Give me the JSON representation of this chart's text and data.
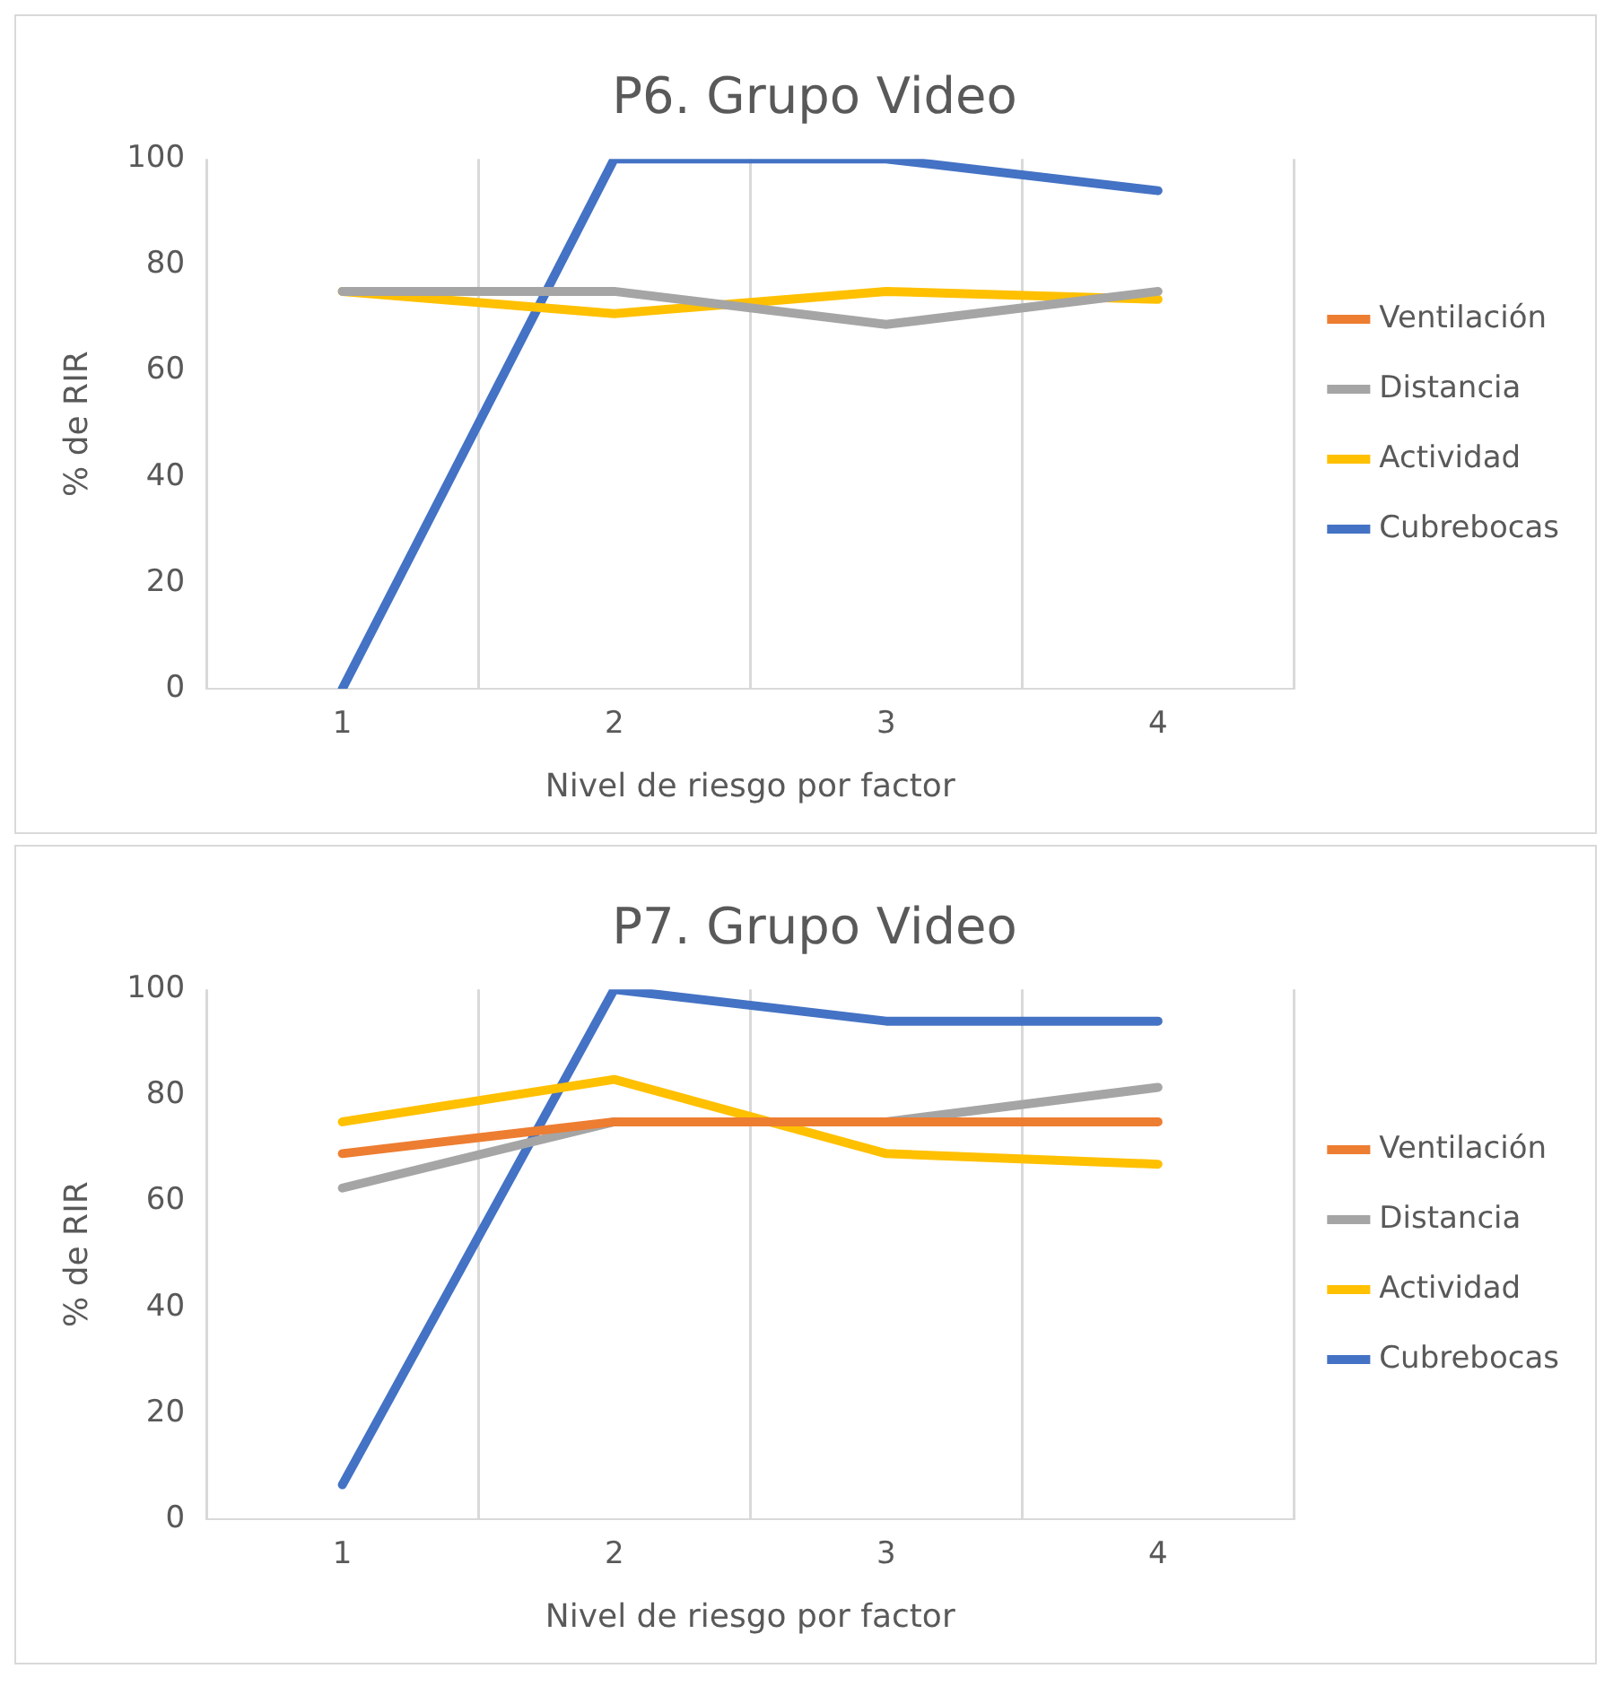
{
  "chart_data": [
    {
      "type": "line",
      "title": "P6. Grupo Video",
      "xlabel": "Nivel de riesgo por factor",
      "ylabel": "% de RIR",
      "categories": [
        "1",
        "2",
        "3",
        "4"
      ],
      "ylim": [
        0,
        100
      ],
      "yticks": [
        0,
        20,
        40,
        60,
        80,
        100
      ],
      "grid": "x",
      "legend": "right",
      "marker": "none",
      "series": [
        {
          "name": "Ventilación",
          "color": "#ed7d31",
          "values": [
            null,
            null,
            null,
            null
          ]
        },
        {
          "name": "Distancia",
          "color": "#a5a5a5",
          "values": [
            75,
            75,
            68.75,
            75
          ]
        },
        {
          "name": "Actividad",
          "color": "#ffc000",
          "values": [
            75,
            70.8,
            75,
            73.5
          ]
        },
        {
          "name": "Cubrebocas",
          "color": "#4472c4",
          "values": [
            0,
            100,
            100,
            94
          ]
        }
      ]
    },
    {
      "type": "line",
      "title": "P7. Grupo Video",
      "xlabel": "Nivel de riesgo por factor",
      "ylabel": "% de RIR",
      "categories": [
        "1",
        "2",
        "3",
        "4"
      ],
      "ylim": [
        0,
        100
      ],
      "yticks": [
        0,
        20,
        40,
        60,
        80,
        100
      ],
      "grid": "x",
      "legend": "right",
      "marker": "none",
      "series": [
        {
          "name": "Ventilación",
          "color": "#ed7d31",
          "values": [
            69,
            75,
            75,
            75
          ]
        },
        {
          "name": "Distancia",
          "color": "#a5a5a5",
          "values": [
            62.5,
            75,
            75,
            81.5
          ]
        },
        {
          "name": "Actividad",
          "color": "#ffc000",
          "values": [
            75,
            83,
            69,
            67
          ]
        },
        {
          "name": "Cubrebocas",
          "color": "#4472c4",
          "values": [
            6.5,
            100,
            94,
            94
          ]
        }
      ]
    }
  ]
}
